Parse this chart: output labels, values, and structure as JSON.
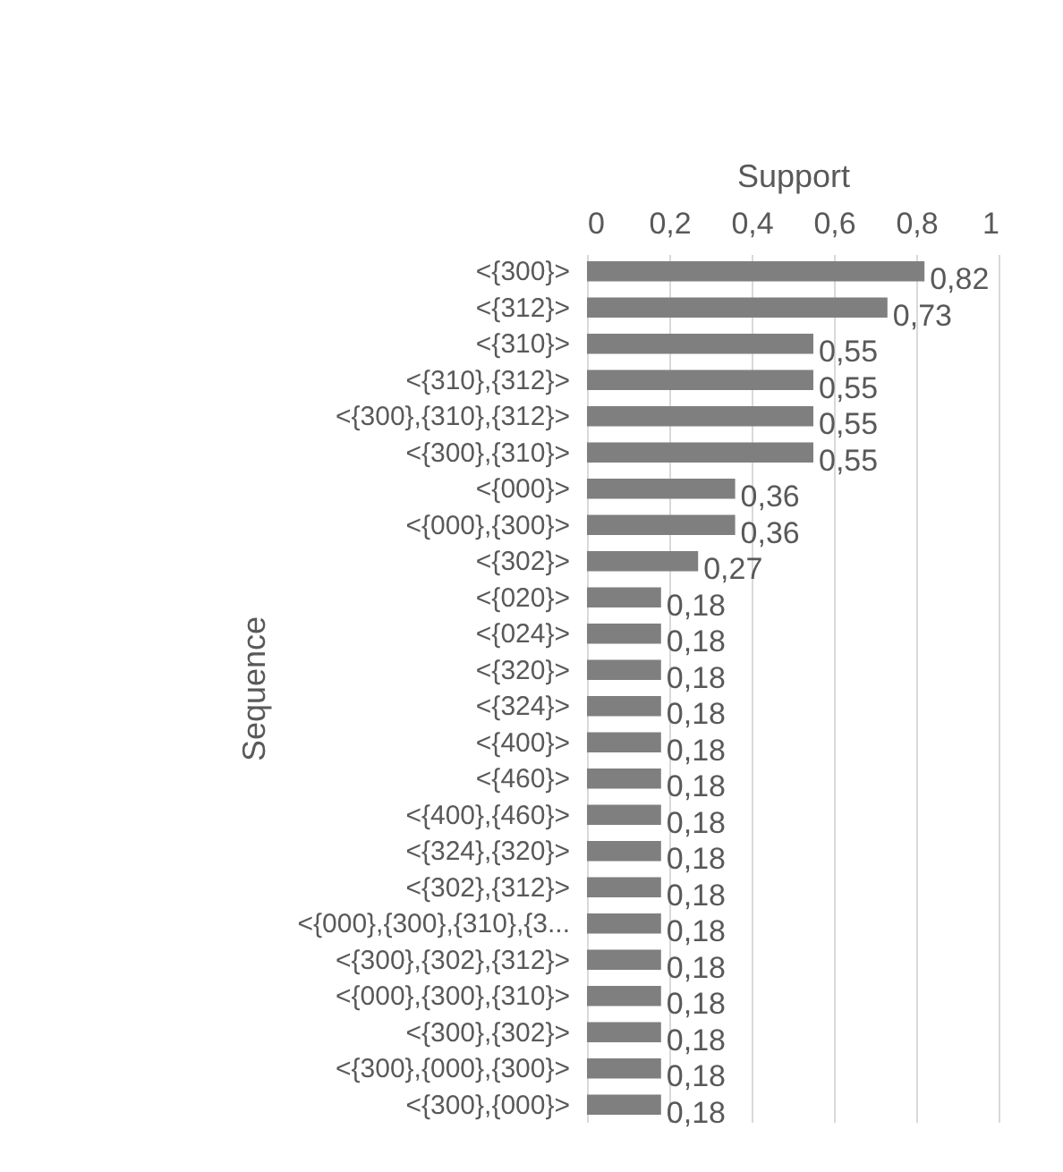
{
  "chart_data": {
    "type": "bar",
    "orientation": "horizontal",
    "xlabel": "Support",
    "ylabel": "Sequence",
    "categories": [
      "<{300}>",
      "<{312}>",
      "<{310}>",
      "<{310},{312}>",
      "<{300},{310},{312}>",
      "<{300},{310}>",
      "<{000}>",
      "<{000},{300}>",
      "<{302}>",
      "<{020}>",
      "<{024}>",
      "<{320}>",
      "<{324}>",
      "<{400}>",
      "<{460}>",
      "<{400},{460}>",
      "<{324},{320}>",
      "<{302},{312}>",
      "<{000},{300},{310},{3...",
      "<{300},{302},{312}>",
      "<{000},{300},{310}>",
      "<{300},{302}>",
      "<{300},{000},{300}>",
      "<{300},{000}>"
    ],
    "values": [
      0.82,
      0.73,
      0.55,
      0.55,
      0.55,
      0.55,
      0.36,
      0.36,
      0.27,
      0.18,
      0.18,
      0.18,
      0.18,
      0.18,
      0.18,
      0.18,
      0.18,
      0.18,
      0.18,
      0.18,
      0.18,
      0.18,
      0.18,
      0.18
    ],
    "value_labels": [
      "0,82",
      "0,73",
      "0,55",
      "0,55",
      "0,55",
      "0,55",
      "0,36",
      "0,36",
      "0,27",
      "0,18",
      "0,18",
      "0,18",
      "0,18",
      "0,18",
      "0,18",
      "0,18",
      "0,18",
      "0,18",
      "0,18",
      "0,18",
      "0,18",
      "0,18",
      "0,18",
      "0,18"
    ],
    "color": "#7f7f7f",
    "xlim": [
      0,
      1
    ],
    "xticks": [
      0,
      {
        "value": 0.2,
        "label": "0,2"
      },
      {
        "value": 0.4,
        "label": "0,4"
      },
      {
        "value": 0.6,
        "label": "0,6"
      },
      {
        "value": 0.8,
        "label": "0,8"
      },
      1
    ],
    "grid": "x"
  }
}
